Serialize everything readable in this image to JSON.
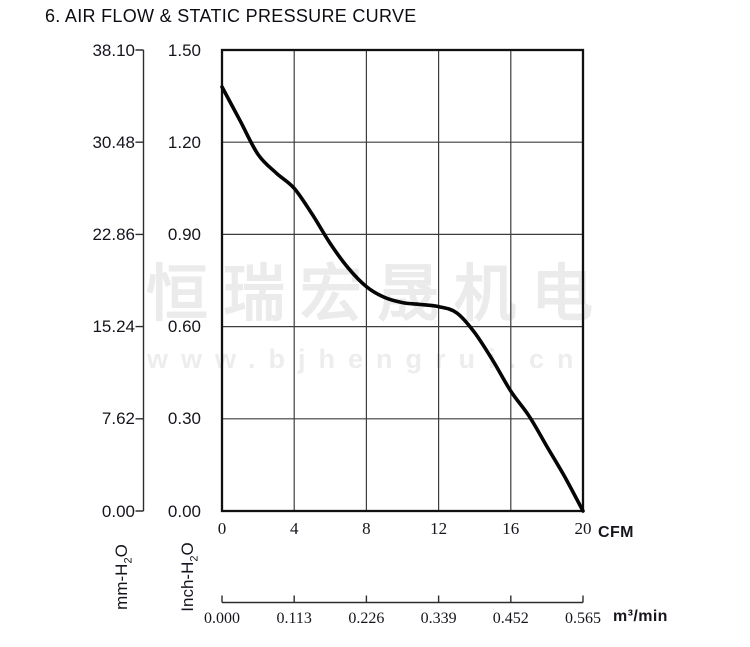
{
  "title": "6. AIR FLOW & STATIC PRESSURE CURVE",
  "watermark": {
    "company": "恒瑞宏晟机电",
    "website": "www.bjhengrui.cn"
  },
  "units": {
    "mm_prefix": "mm-H",
    "inch_prefix": "Inch-H",
    "water_sub": "2",
    "water_suffix": "O",
    "cfm": "CFM",
    "m3min": "m³/min"
  },
  "chart_data": {
    "type": "line",
    "title": "6. AIR FLOW & STATIC PRESSURE CURVE",
    "grid": true,
    "x_axis_primary": {
      "unit": "CFM",
      "tick_labels": [
        "0",
        "4",
        "8",
        "12",
        "16",
        "20"
      ],
      "range": [
        0,
        20
      ]
    },
    "x_axis_secondary": {
      "unit": "m³/min",
      "tick_labels": [
        "0.000",
        "0.113",
        "0.226",
        "0.339",
        "0.452",
        "0.565"
      ],
      "range": [
        0,
        0.565
      ]
    },
    "y_axis_primary": {
      "unit": "Inch-H2O",
      "tick_labels": [
        "1.50",
        "1.20",
        "0.90",
        "0.60",
        "0.30",
        "0.00"
      ],
      "range": [
        0,
        1.5
      ]
    },
    "y_axis_secondary": {
      "unit": "mm-H2O",
      "tick_labels": [
        "38.10",
        "30.48",
        "22.86",
        "15.24",
        "7.62",
        "0.00"
      ],
      "range": [
        0,
        38.1
      ]
    },
    "series": [
      {
        "name": "static pressure vs air flow",
        "x_cfm": [
          0,
          1,
          2,
          3,
          4,
          5,
          6,
          7,
          8,
          9,
          10,
          11,
          12,
          13,
          14,
          15,
          16,
          17,
          18,
          19,
          20
        ],
        "y_inch_h2o": [
          1.38,
          1.27,
          1.16,
          1.1,
          1.05,
          0.965,
          0.87,
          0.79,
          0.73,
          0.695,
          0.678,
          0.672,
          0.665,
          0.645,
          0.58,
          0.49,
          0.39,
          0.31,
          0.21,
          0.11,
          0.0
        ]
      }
    ]
  }
}
